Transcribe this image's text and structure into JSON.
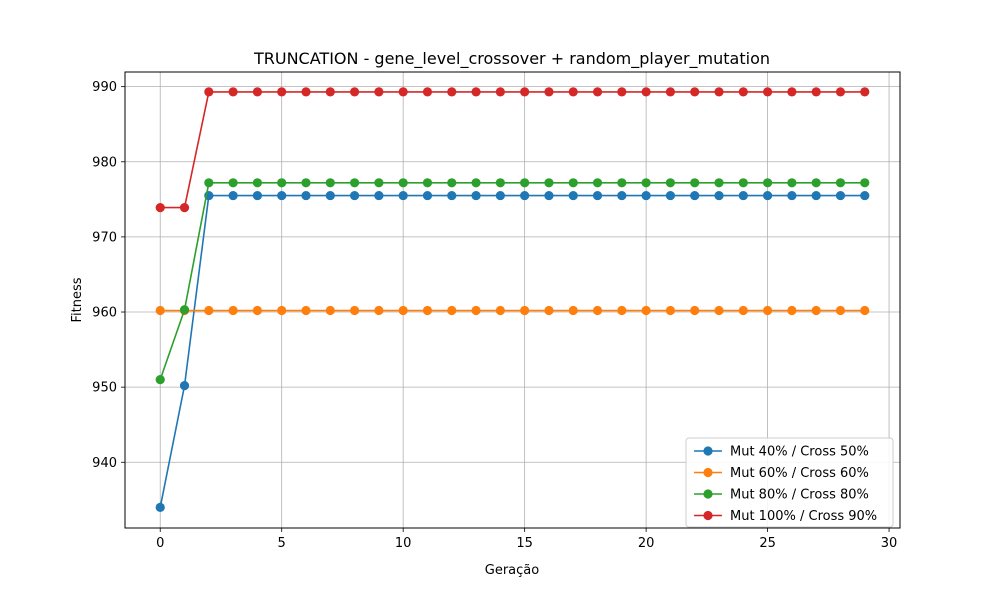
{
  "chart_data": {
    "type": "line",
    "title": "TRUNCATION - gene_level_crossover + random_player_mutation",
    "xlabel": "Geração",
    "ylabel": "Fitness",
    "xlim": [
      -1.45,
      30.45
    ],
    "ylim": [
      931.25,
      991.95
    ],
    "xticks": [
      0,
      5,
      10,
      15,
      20,
      25,
      30
    ],
    "yticks": [
      940,
      950,
      960,
      970,
      980,
      990
    ],
    "grid": true,
    "legend_position": "lower-right",
    "x": [
      0,
      1,
      2,
      3,
      4,
      5,
      6,
      7,
      8,
      9,
      10,
      11,
      12,
      13,
      14,
      15,
      16,
      17,
      18,
      19,
      20,
      21,
      22,
      23,
      24,
      25,
      26,
      27,
      28,
      29
    ],
    "series": [
      {
        "name": "Mut 40% / Cross 50%",
        "color": "#1f77b4",
        "values": [
          934.0,
          950.2,
          975.5,
          975.5,
          975.5,
          975.5,
          975.5,
          975.5,
          975.5,
          975.5,
          975.5,
          975.5,
          975.5,
          975.5,
          975.5,
          975.5,
          975.5,
          975.5,
          975.5,
          975.5,
          975.5,
          975.5,
          975.5,
          975.5,
          975.5,
          975.5,
          975.5,
          975.5,
          975.5,
          975.5
        ]
      },
      {
        "name": "Mut 60% / Cross 60%",
        "color": "#ff7f0e",
        "values": [
          960.2,
          960.2,
          960.2,
          960.2,
          960.2,
          960.2,
          960.2,
          960.2,
          960.2,
          960.2,
          960.2,
          960.2,
          960.2,
          960.2,
          960.2,
          960.2,
          960.2,
          960.2,
          960.2,
          960.2,
          960.2,
          960.2,
          960.2,
          960.2,
          960.2,
          960.2,
          960.2,
          960.2,
          960.2,
          960.2
        ]
      },
      {
        "name": "Mut 80% / Cross 80%",
        "color": "#2ca02c",
        "values": [
          951.0,
          960.3,
          977.2,
          977.2,
          977.2,
          977.2,
          977.2,
          977.2,
          977.2,
          977.2,
          977.2,
          977.2,
          977.2,
          977.2,
          977.2,
          977.2,
          977.2,
          977.2,
          977.2,
          977.2,
          977.2,
          977.2,
          977.2,
          977.2,
          977.2,
          977.2,
          977.2,
          977.2,
          977.2,
          977.2
        ]
      },
      {
        "name": "Mut 100% / Cross 90%",
        "color": "#d62728",
        "values": [
          973.9,
          973.9,
          989.3,
          989.3,
          989.3,
          989.3,
          989.3,
          989.3,
          989.3,
          989.3,
          989.3,
          989.3,
          989.3,
          989.3,
          989.3,
          989.3,
          989.3,
          989.3,
          989.3,
          989.3,
          989.3,
          989.3,
          989.3,
          989.3,
          989.3,
          989.3,
          989.3,
          989.3,
          989.3,
          989.3
        ]
      }
    ]
  }
}
